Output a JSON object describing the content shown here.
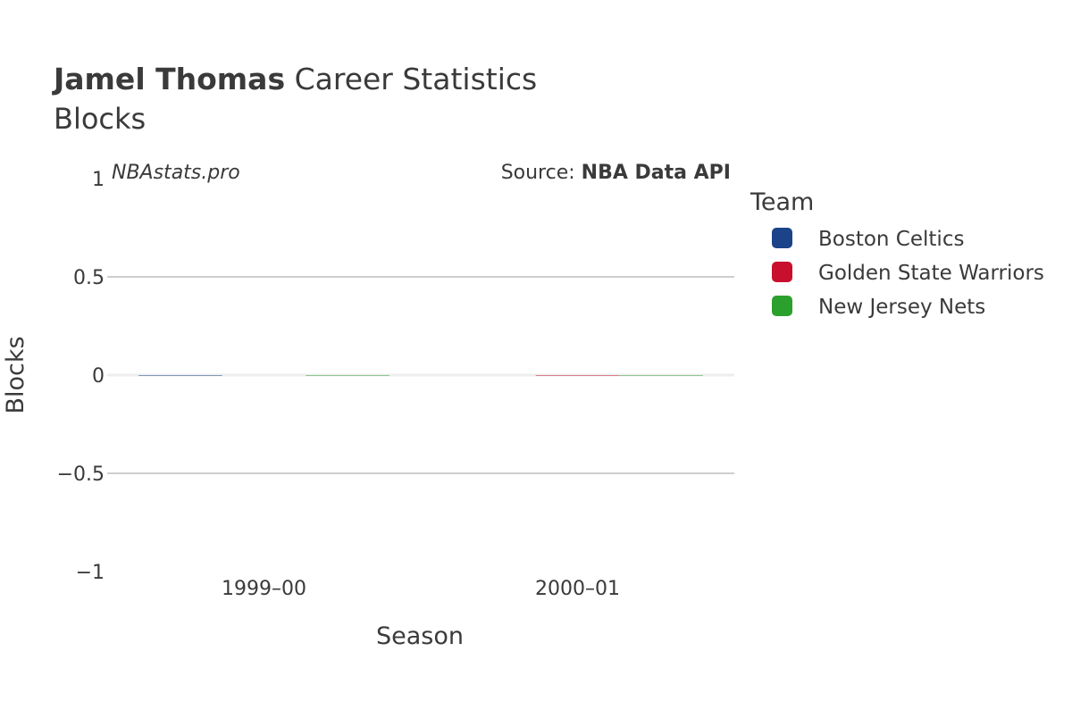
{
  "chart_data": {
    "type": "bar",
    "title_player": "Jamel Thomas",
    "title_rest": " Career Statistics",
    "subtitle": "Blocks",
    "watermark": "NBAstats.pro",
    "source_prefix": "Source: ",
    "source_name": "NBA Data API",
    "xlabel": "Season",
    "ylabel": "Blocks",
    "ylim": [
      -1,
      1
    ],
    "yticks": [
      1,
      0.5,
      0,
      -0.5,
      -1
    ],
    "ytick_labels": [
      "1",
      "0.5",
      "0",
      "−0.5",
      "−1"
    ],
    "categories": [
      "1999–00",
      "2000–01"
    ],
    "grid": true,
    "legend_title": "Team",
    "legend_position": "right",
    "series": [
      {
        "name": "Boston Celtics",
        "color": "#1b4389",
        "values": [
          0,
          null
        ]
      },
      {
        "name": "Golden State Warriors",
        "color": "#c8102e",
        "values": [
          null,
          0
        ]
      },
      {
        "name": "New Jersey Nets",
        "color": "#2ca02c",
        "values": [
          0,
          0
        ]
      }
    ]
  }
}
